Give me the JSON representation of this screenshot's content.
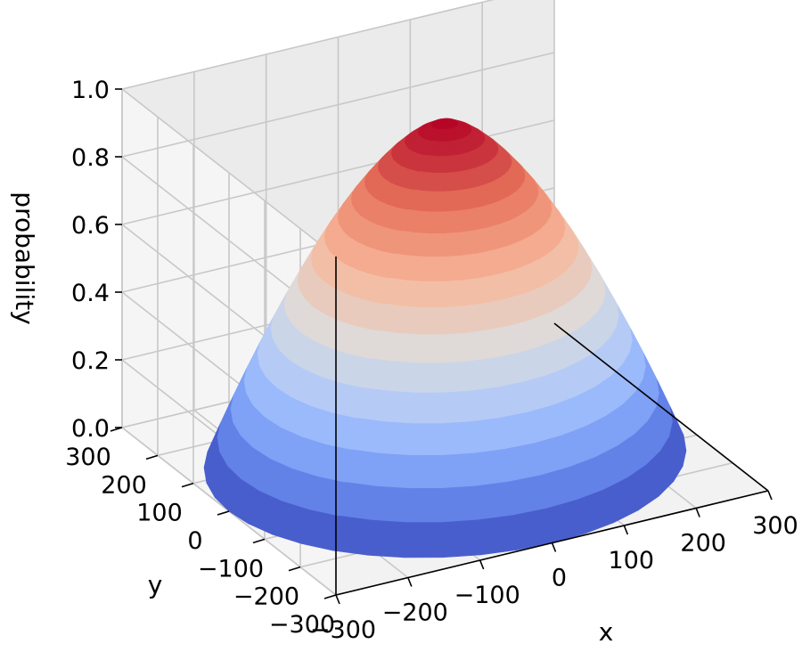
{
  "chart_data": {
    "type": "surface3d",
    "title": "",
    "xlabel": "x",
    "ylabel": "y",
    "zlabel": "probability",
    "xlim": [
      -300,
      300
    ],
    "ylim": [
      -300,
      300
    ],
    "zlim": [
      0.0,
      1.0
    ],
    "x_ticks": [
      "−300",
      "−200",
      "−100",
      "0",
      "100",
      "200",
      "300"
    ],
    "y_ticks": [
      "−300",
      "−200",
      "−100",
      "0",
      "100",
      "200",
      "300"
    ],
    "z_ticks": [
      "0.0",
      "0.2",
      "0.4",
      "0.6",
      "0.8",
      "1.0"
    ],
    "colormap": "coolwarm",
    "colormap_stops": [
      "#3b4cc0",
      "#6f92f3",
      "#aac7fd",
      "#dddcdc",
      "#f7b89c",
      "#e7745b",
      "#b40426"
    ],
    "grid": true,
    "surface": {
      "center_x": 0,
      "center_y": 0,
      "radius": 300,
      "peak_probability": 1.0,
      "base_probability": 0.0,
      "description_levels": [
        0.0,
        0.1,
        0.2,
        0.3,
        0.4,
        0.5,
        0.6,
        0.7,
        0.8,
        0.9,
        1.0
      ]
    }
  }
}
